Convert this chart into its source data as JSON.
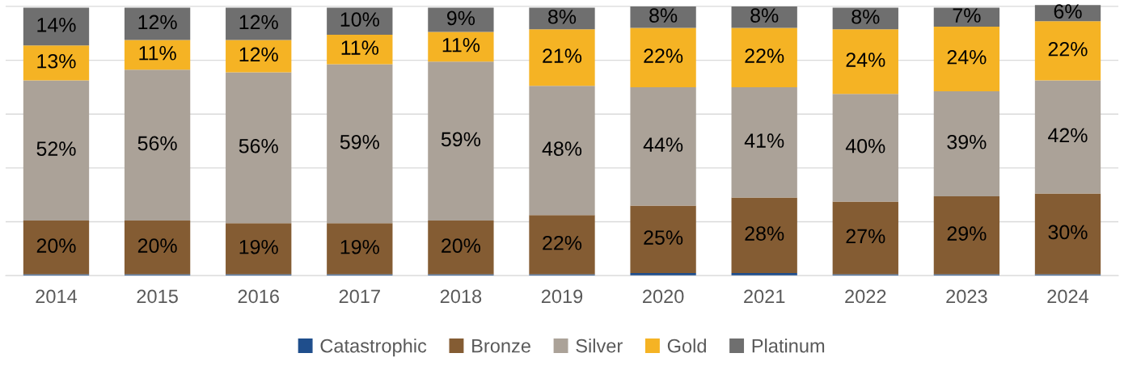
{
  "chart_data": {
    "type": "bar",
    "stacked": true,
    "categories": [
      "2014",
      "2015",
      "2016",
      "2017",
      "2018",
      "2019",
      "2020",
      "2021",
      "2022",
      "2023",
      "2024"
    ],
    "series": [
      {
        "name": "Catastrophic",
        "color": "#1f4e8c",
        "values": [
          0.5,
          0.5,
          0.5,
          0.5,
          0.5,
          0.5,
          1,
          1,
          0.5,
          0.5,
          0.5
        ]
      },
      {
        "name": "Bronze",
        "color": "#845c33",
        "values": [
          20,
          20,
          19,
          19,
          20,
          22,
          25,
          28,
          27,
          29,
          30
        ],
        "value_labels": [
          "20%",
          "20%",
          "19%",
          "19%",
          "20%",
          "22%",
          "25%",
          "28%",
          "27%",
          "29%",
          "30%"
        ]
      },
      {
        "name": "Silver",
        "color": "#aba298",
        "values": [
          52,
          56,
          56,
          59,
          59,
          48,
          44,
          41,
          40,
          39,
          42
        ],
        "value_labels": [
          "52%",
          "56%",
          "56%",
          "59%",
          "59%",
          "48%",
          "44%",
          "41%",
          "40%",
          "39%",
          "42%"
        ]
      },
      {
        "name": "Gold",
        "color": "#f5b324",
        "values": [
          13,
          11,
          12,
          11,
          11,
          21,
          22,
          22,
          24,
          24,
          22
        ],
        "value_labels": [
          "13%",
          "11%",
          "12%",
          "11%",
          "11%",
          "21%",
          "22%",
          "22%",
          "24%",
          "24%",
          "22%"
        ]
      },
      {
        "name": "Platinum",
        "color": "#6f6f6f",
        "values": [
          14,
          12,
          12,
          10,
          9,
          8,
          8,
          8,
          8,
          7,
          6
        ],
        "value_labels": [
          "14%",
          "12%",
          "12%",
          "10%",
          "9%",
          "8%",
          "8%",
          "8%",
          "8%",
          "7%",
          "6%"
        ]
      }
    ],
    "ylim": [
      0,
      101
    ],
    "yticks": [
      {
        "value": 0,
        "label": null
      },
      {
        "value": 20,
        "label": null
      },
      {
        "value": 40,
        "label": null
      },
      {
        "value": 60,
        "label": null
      },
      {
        "value": 80,
        "label": null
      },
      {
        "value": 100,
        "label": null
      }
    ],
    "tick_labels": "x",
    "grid": "y",
    "legend": "bottom"
  }
}
